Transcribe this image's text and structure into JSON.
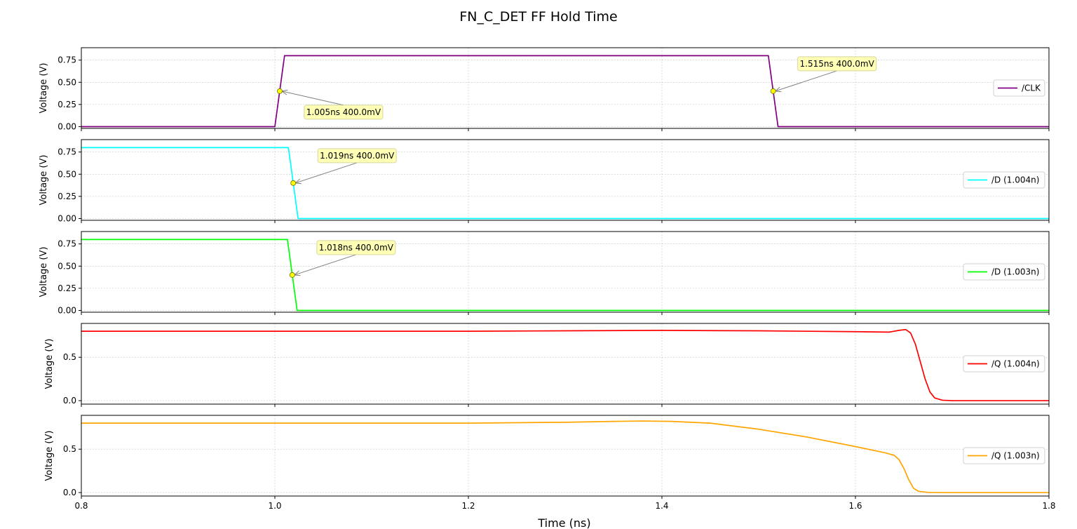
{
  "chart_data": {
    "type": "line",
    "title": "FN_C_DET FF Hold Time",
    "xlabel": "Time (ns)",
    "xlim": [
      0.8,
      1.8
    ],
    "xticks": [
      "0.8",
      "1.0",
      "1.2",
      "1.4",
      "1.6",
      "1.8"
    ],
    "grid": true,
    "subplots": [
      {
        "ylabel": "Voltage (V)",
        "ylim": [
          -0.02,
          0.89
        ],
        "yticks": [
          "0.00",
          "0.25",
          "0.50",
          "0.75"
        ],
        "legend_position": "right",
        "series": [
          {
            "name": "/CLK",
            "color": "#800080",
            "x": [
              0.8,
              1.0,
              1.01,
              1.51,
              1.52,
              1.8
            ],
            "y": [
              0.0,
              0.0,
              0.8,
              0.8,
              0.0,
              0.0
            ]
          }
        ],
        "annotations": [
          {
            "text": "1.005ns 400.0mV",
            "x": 1.005,
            "y": 0.4
          },
          {
            "text": "1.515ns 400.0mV",
            "x": 1.515,
            "y": 0.4
          }
        ]
      },
      {
        "ylabel": "Voltage (V)",
        "ylim": [
          -0.02,
          0.89
        ],
        "yticks": [
          "0.00",
          "0.25",
          "0.50",
          "0.75"
        ],
        "legend_position": "right",
        "series": [
          {
            "name": "/D (1.004n)",
            "color": "#00ffff",
            "x": [
              0.8,
              1.014,
              1.024,
              1.8
            ],
            "y": [
              0.8,
              0.8,
              0.0,
              0.0
            ]
          }
        ],
        "annotations": [
          {
            "text": "1.019ns 400.0mV",
            "x": 1.019,
            "y": 0.4
          }
        ]
      },
      {
        "ylabel": "Voltage (V)",
        "ylim": [
          -0.02,
          0.89
        ],
        "yticks": [
          "0.00",
          "0.25",
          "0.50",
          "0.75"
        ],
        "legend_position": "right",
        "series": [
          {
            "name": "/D (1.003n)",
            "color": "#00ff00",
            "x": [
              0.8,
              1.013,
              1.023,
              1.8
            ],
            "y": [
              0.8,
              0.8,
              0.0,
              0.0
            ]
          }
        ],
        "annotations": [
          {
            "text": "1.018ns 400.0mV",
            "x": 1.018,
            "y": 0.4
          }
        ]
      },
      {
        "ylabel": "Voltage (V)",
        "ylim": [
          -0.04,
          0.89
        ],
        "yticks": [
          "0.0",
          "0.5"
        ],
        "legend_position": "right",
        "series": [
          {
            "name": "/Q (1.004n)",
            "color": "#ff0000",
            "x": [
              0.8,
              1.0,
              1.2,
              1.3,
              1.4,
              1.5,
              1.6,
              1.635,
              1.645,
              1.652,
              1.657,
              1.662,
              1.667,
              1.672,
              1.677,
              1.682,
              1.69,
              1.7,
              1.8
            ],
            "y": [
              0.8,
              0.8,
              0.8,
              0.805,
              0.81,
              0.805,
              0.795,
              0.79,
              0.81,
              0.82,
              0.78,
              0.65,
              0.45,
              0.25,
              0.1,
              0.03,
              0.005,
              0.0,
              0.0
            ]
          }
        ]
      },
      {
        "ylabel": "Voltage (V)",
        "ylim": [
          -0.04,
          0.89
        ],
        "yticks": [
          "0.0",
          "0.5"
        ],
        "legend_position": "right",
        "series": [
          {
            "name": "/Q (1.003n)",
            "color": "#ffa500",
            "x": [
              0.8,
              1.0,
              1.2,
              1.3,
              1.35,
              1.38,
              1.41,
              1.45,
              1.5,
              1.55,
              1.6,
              1.63,
              1.64,
              1.645,
              1.65,
              1.655,
              1.66,
              1.665,
              1.675,
              1.69,
              1.8
            ],
            "y": [
              0.8,
              0.8,
              0.8,
              0.81,
              0.82,
              0.825,
              0.82,
              0.8,
              0.73,
              0.64,
              0.53,
              0.46,
              0.43,
              0.38,
              0.28,
              0.15,
              0.05,
              0.015,
              0.002,
              0.0,
              0.0
            ]
          }
        ]
      }
    ]
  }
}
